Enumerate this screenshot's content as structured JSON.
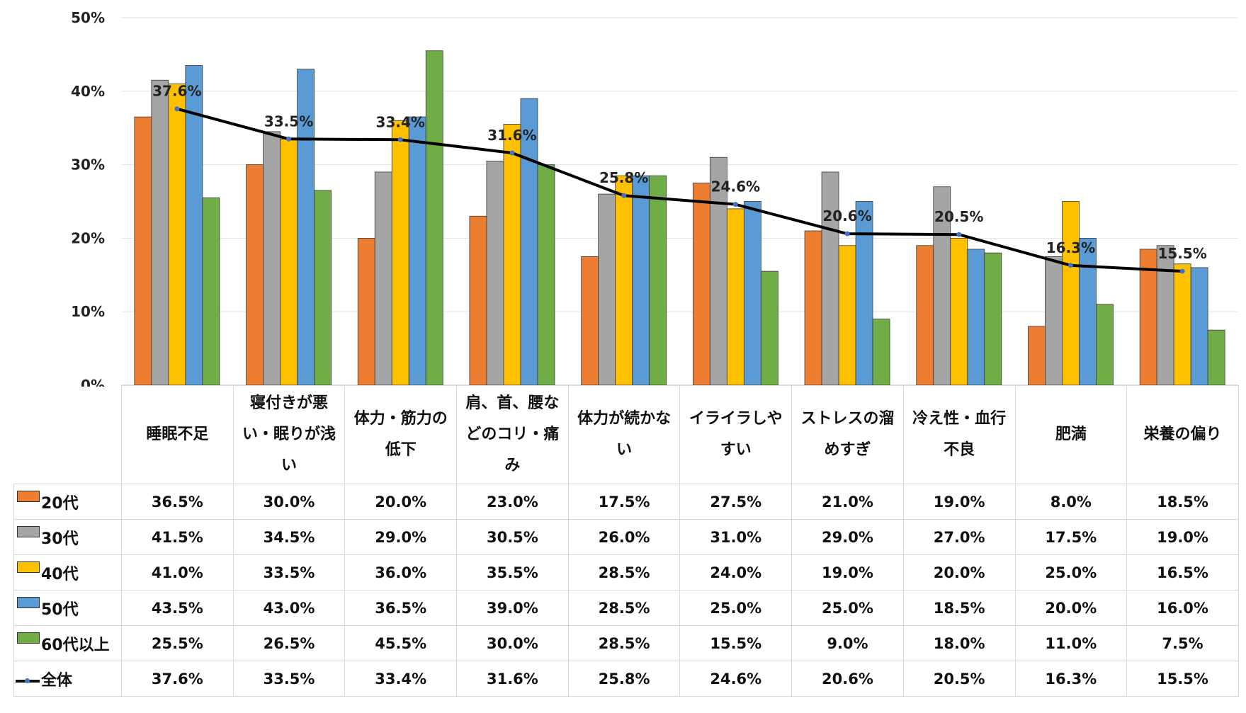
{
  "chart_data": {
    "type": "bar",
    "categories": [
      "睡眠不足",
      "寝付きが悪い・眠りが浅い",
      "体力・筋力の低下",
      "肩、首、腰などのコリ・痛み",
      "体力が続かない",
      "イライラしやすい",
      "ストレスの溜めすぎ",
      "冷え性・血行不良",
      "肥満",
      "栄養の偏り"
    ],
    "ylim": [
      0,
      50
    ],
    "yticks": [
      "0%",
      "10%",
      "20%",
      "30%",
      "40%",
      "50%"
    ],
    "grid": true,
    "series": [
      {
        "name": "20代",
        "type": "bar",
        "color": "#ed7d31",
        "values": [
          36.5,
          30.0,
          20.0,
          23.0,
          17.5,
          27.5,
          21.0,
          19.0,
          8.0,
          18.5
        ],
        "labels": [
          "36.5%",
          "30.0%",
          "20.0%",
          "23.0%",
          "17.5%",
          "27.5%",
          "21.0%",
          "19.0%",
          "8.0%",
          "18.5%"
        ]
      },
      {
        "name": "30代",
        "type": "bar",
        "color": "#a5a5a5",
        "values": [
          41.5,
          34.5,
          29.0,
          30.5,
          26.0,
          31.0,
          29.0,
          27.0,
          17.5,
          19.0
        ],
        "labels": [
          "41.5%",
          "34.5%",
          "29.0%",
          "30.5%",
          "26.0%",
          "31.0%",
          "29.0%",
          "27.0%",
          "17.5%",
          "19.0%"
        ]
      },
      {
        "name": "40代",
        "type": "bar",
        "color": "#ffc000",
        "values": [
          41.0,
          33.5,
          36.0,
          35.5,
          28.5,
          24.0,
          19.0,
          20.0,
          25.0,
          16.5
        ],
        "labels": [
          "41.0%",
          "33.5%",
          "36.0%",
          "35.5%",
          "28.5%",
          "24.0%",
          "19.0%",
          "20.0%",
          "25.0%",
          "16.5%"
        ]
      },
      {
        "name": "50代",
        "type": "bar",
        "color": "#5b9bd5",
        "values": [
          43.5,
          43.0,
          36.5,
          39.0,
          28.5,
          25.0,
          25.0,
          18.5,
          20.0,
          16.0
        ],
        "labels": [
          "43.5%",
          "43.0%",
          "36.5%",
          "39.0%",
          "28.5%",
          "25.0%",
          "25.0%",
          "18.5%",
          "20.0%",
          "16.0%"
        ]
      },
      {
        "name": "60代以上",
        "type": "bar",
        "color": "#70ad47",
        "values": [
          25.5,
          26.5,
          45.5,
          30.0,
          28.5,
          15.5,
          9.0,
          18.0,
          11.0,
          7.5
        ],
        "labels": [
          "25.5%",
          "26.5%",
          "45.5%",
          "30.0%",
          "28.5%",
          "15.5%",
          "9.0%",
          "18.0%",
          "11.0%",
          "7.5%"
        ]
      },
      {
        "name": "全体",
        "type": "line",
        "color": "#000000",
        "marker_color": "#4472c4",
        "values": [
          37.6,
          33.5,
          33.4,
          31.6,
          25.8,
          24.6,
          20.6,
          20.5,
          16.3,
          15.5
        ],
        "labels": [
          "37.6%",
          "33.5%",
          "33.4%",
          "31.6%",
          "25.8%",
          "24.6%",
          "20.6%",
          "20.5%",
          "16.3%",
          "15.5%"
        ]
      }
    ],
    "legend": "table-left"
  }
}
